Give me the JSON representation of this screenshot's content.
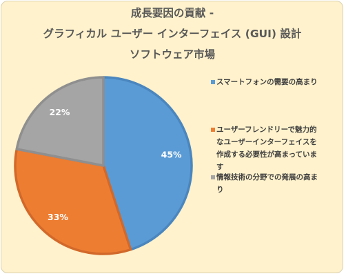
{
  "chart_data": {
    "type": "pie",
    "title_lines": [
      "成長要因の貢献 -",
      "グラフィカル ユーザー インターフェイス (GUI) 設計",
      "ソフトウェア市場"
    ],
    "categories": [
      "スマートフォンの需要の高まり",
      "ユーザーフレンドリーで魅力的なユーザーインターフェイスを作成する必要性が高まっています",
      "情報技術の分野での発展の高まり"
    ],
    "values": [
      45,
      33,
      22
    ],
    "data_labels": [
      "45%",
      "33%",
      "22%"
    ],
    "colors": [
      "#5b9bd5",
      "#ed7d31",
      "#a5a5a5"
    ],
    "border_colors": [
      "#4a86bf",
      "#d2692a",
      "#8f8f8f"
    ],
    "legend_position": "right",
    "start_angle_deg": 0,
    "direction": "clockwise"
  },
  "background_color": "#fff2cc"
}
